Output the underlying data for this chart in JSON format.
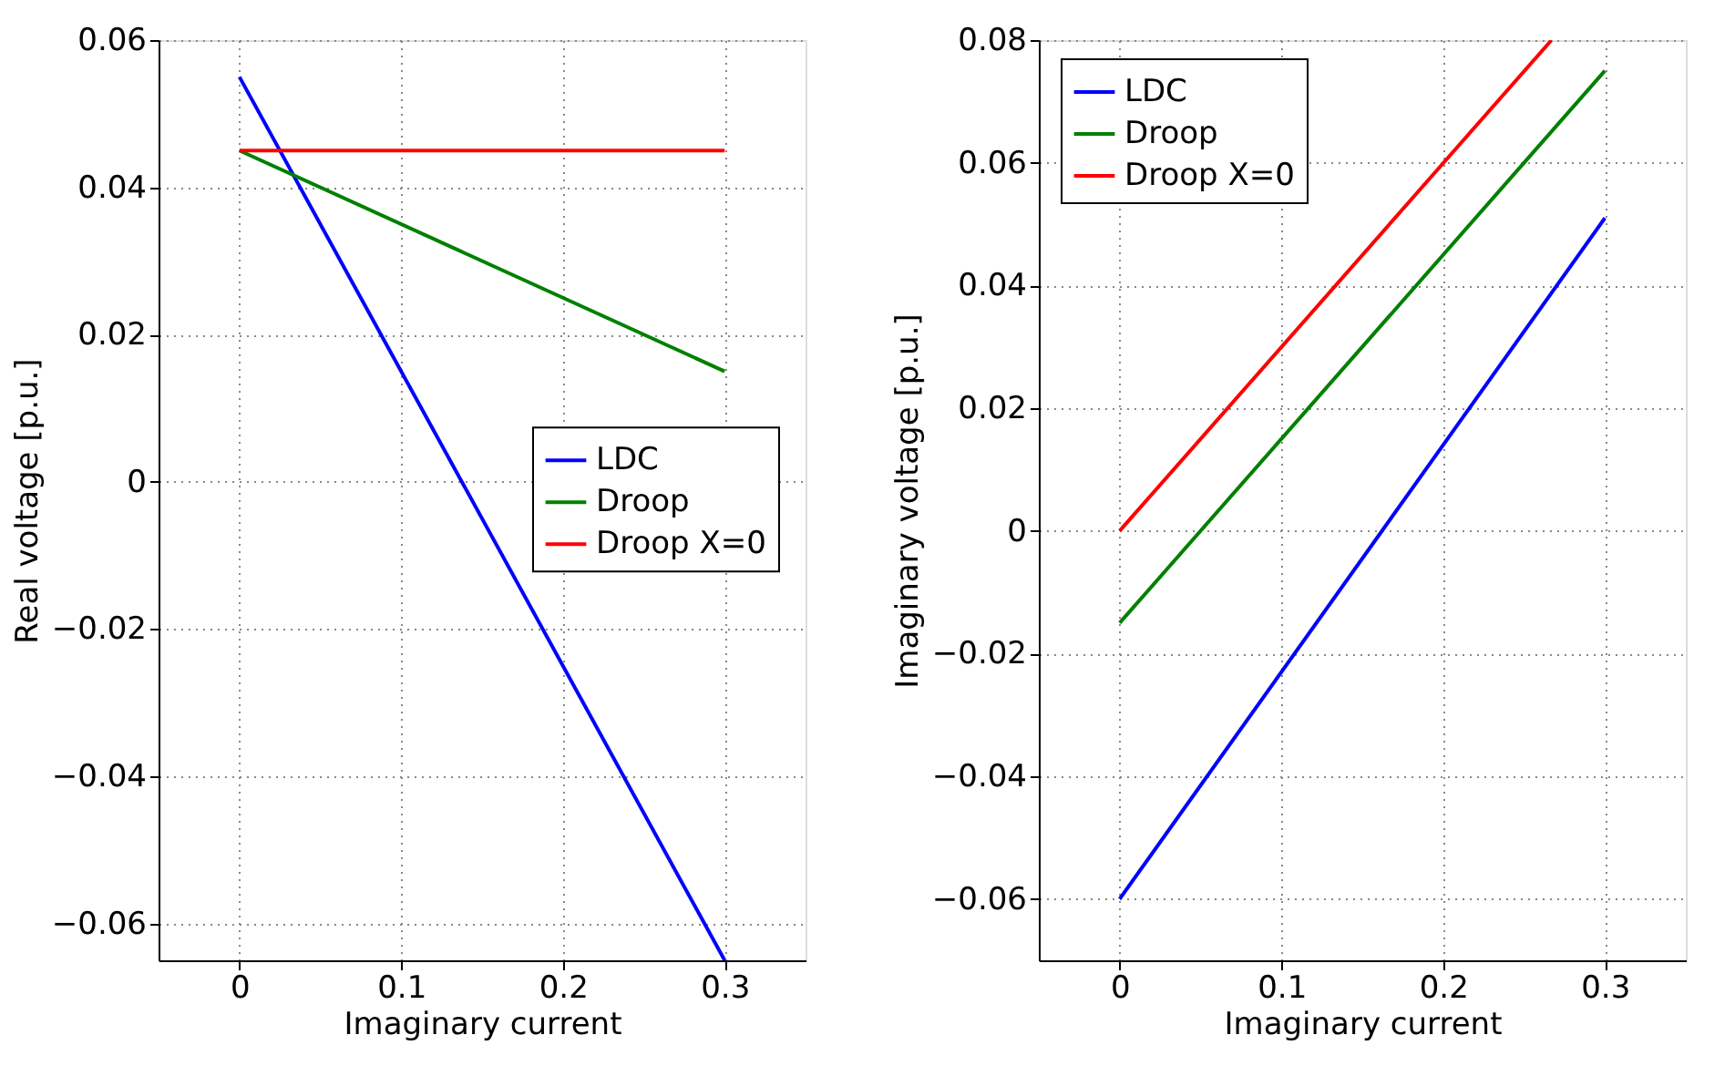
{
  "chart_data": [
    {
      "type": "line",
      "xlabel": "Imaginary current",
      "ylabel": "Real voltage [p.u.]",
      "xlim": [
        -0.05,
        0.35
      ],
      "xticks": [
        0,
        0.1,
        0.2,
        0.3
      ],
      "ylim": [
        -0.065,
        0.06
      ],
      "yticks": [
        {
          "value": -0.06,
          "label": "−0.06"
        },
        {
          "value": -0.04,
          "label": "−0.04"
        },
        {
          "value": -0.02,
          "label": "−0.02"
        },
        0,
        0.02,
        0.04,
        0.06
      ],
      "grid": true,
      "legend": "right",
      "line_style": "solid",
      "marker": "none",
      "series": [
        {
          "name": "LDC",
          "color": "#0000ff",
          "x": [
            0,
            0.3
          ],
          "values": [
            0.055,
            -0.065
          ]
        },
        {
          "name": "Droop",
          "color": "#008000",
          "x": [
            0,
            0.3
          ],
          "values": [
            0.045,
            0.015
          ]
        },
        {
          "name": "Droop X=0",
          "color": "#ff0000",
          "x": [
            0,
            0.3
          ],
          "values": [
            0.045,
            0.045
          ]
        }
      ]
    },
    {
      "type": "line",
      "xlabel": "Imaginary current",
      "ylabel": "Imaginary voltage [p.u.]",
      "xlim": [
        -0.05,
        0.35
      ],
      "xticks": [
        0,
        0.1,
        0.2,
        0.3
      ],
      "ylim": [
        -0.07,
        0.08
      ],
      "yticks": [
        {
          "value": -0.06,
          "label": "−0.06"
        },
        {
          "value": -0.04,
          "label": "−0.04"
        },
        {
          "value": -0.02,
          "label": "−0.02"
        },
        0,
        0.02,
        0.04,
        0.06,
        0.08
      ],
      "grid": true,
      "legend": "top left",
      "line_style": "solid",
      "marker": "none",
      "series": [
        {
          "name": "LDC",
          "color": "#0000ff",
          "x": [
            0,
            0.3
          ],
          "values": [
            -0.06,
            0.051
          ]
        },
        {
          "name": "Droop",
          "color": "#008000",
          "x": [
            0,
            0.3
          ],
          "values": [
            -0.015,
            0.075
          ]
        },
        {
          "name": "Droop X=0",
          "color": "#ff0000",
          "x": [
            0,
            0.267
          ],
          "values": [
            0,
            0.08
          ]
        }
      ]
    }
  ]
}
